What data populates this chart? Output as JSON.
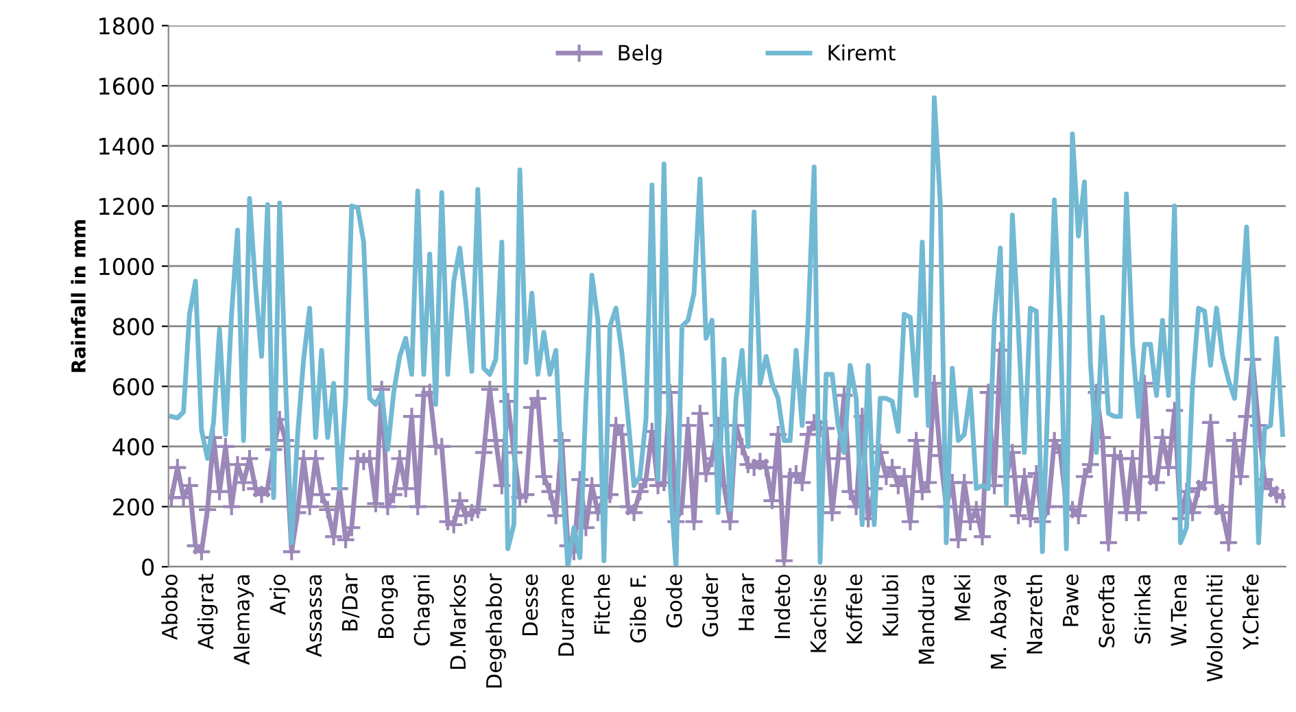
{
  "chart_data": {
    "type": "line",
    "ylabel": "Rainfall in mm",
    "categories": [
      "Abobo",
      null,
      null,
      null,
      null,
      null,
      "Adigrat",
      null,
      null,
      null,
      null,
      null,
      "Alemaya",
      null,
      null,
      null,
      null,
      null,
      "Arjo",
      null,
      null,
      null,
      null,
      null,
      "Assassa",
      null,
      null,
      null,
      null,
      null,
      "B/Dar",
      null,
      null,
      null,
      null,
      null,
      "Bonga",
      null,
      null,
      null,
      null,
      null,
      "Chagni",
      null,
      null,
      null,
      null,
      null,
      "D.Markos",
      null,
      null,
      null,
      null,
      null,
      "Degehabor",
      null,
      null,
      null,
      null,
      null,
      "Desse",
      null,
      null,
      null,
      null,
      null,
      "Durame",
      null,
      null,
      null,
      null,
      null,
      "Fitche",
      null,
      null,
      null,
      null,
      null,
      "Gibe F.",
      null,
      null,
      null,
      null,
      null,
      "Gode",
      null,
      null,
      null,
      null,
      null,
      "Guder",
      null,
      null,
      null,
      null,
      null,
      "Harar",
      null,
      null,
      null,
      null,
      null,
      "Indeto",
      null,
      null,
      null,
      null,
      null,
      "Kachise",
      null,
      null,
      null,
      null,
      null,
      "Koffele",
      null,
      null,
      null,
      null,
      null,
      "Kulubi",
      null,
      null,
      null,
      null,
      null,
      "Mandura",
      null,
      null,
      null,
      null,
      null,
      "Meki",
      null,
      null,
      null,
      null,
      null,
      "M. Abaya",
      null,
      null,
      null,
      null,
      null,
      "Nazreth",
      null,
      null,
      null,
      null,
      null,
      "Pawe",
      null,
      null,
      null,
      null,
      null,
      "Serofta",
      null,
      null,
      null,
      null,
      null,
      "Sirinka",
      null,
      null,
      null,
      null,
      null,
      "W.Tena",
      null,
      null,
      null,
      null,
      null,
      "Wolonchiti",
      null,
      null,
      null,
      null,
      null,
      "Y.Chefe",
      null,
      null,
      null,
      null,
      null
    ],
    "series": [
      {
        "name": "Belg",
        "color": "#9b87b8",
        "marker": "cross",
        "values": [
          230,
          330,
          230,
          270,
          70,
          50,
          190,
          430,
          250,
          400,
          200,
          340,
          280,
          360,
          260,
          240,
          260,
          390,
          490,
          420,
          50,
          180,
          360,
          200,
          360,
          240,
          190,
          100,
          260,
          90,
          130,
          360,
          350,
          360,
          210,
          590,
          200,
          240,
          360,
          260,
          500,
          200,
          570,
          580,
          400,
          400,
          150,
          140,
          220,
          170,
          180,
          190,
          380,
          590,
          420,
          270,
          550,
          380,
          230,
          240,
          530,
          560,
          300,
          250,
          170,
          420,
          70,
          50,
          290,
          130,
          270,
          180,
          230,
          240,
          470,
          440,
          200,
          180,
          250,
          290,
          450,
          270,
          280,
          580,
          150,
          200,
          470,
          150,
          510,
          310,
          360,
          470,
          270,
          150,
          470,
          400,
          340,
          330,
          350,
          330,
          220,
          440,
          20,
          300,
          310,
          280,
          440,
          480,
          460,
          460,
          180,
          360,
          570,
          250,
          200,
          500,
          160,
          260,
          380,
          300,
          330,
          270,
          300,
          150,
          420,
          250,
          280,
          610,
          370,
          200,
          280,
          90,
          280,
          150,
          190,
          100,
          580,
          270,
          720,
          300,
          380,
          170,
          300,
          160,
          310,
          150,
          200,
          420,
          380,
          200,
          190,
          170,
          300,
          340,
          580,
          430,
          80,
          370,
          360,
          180,
          360,
          180,
          610,
          300,
          280,
          430,
          330,
          520,
          160,
          250,
          180,
          260,
          280,
          480,
          200,
          180,
          80,
          420,
          300,
          500,
          690,
          470,
          290,
          260,
          240,
          230
        ]
      },
      {
        "name": "Kiremt",
        "color": "#72b9d3",
        "marker": "none",
        "values": [
          500,
          495,
          515,
          840,
          950,
          455,
          360,
          480,
          790,
          440,
          840,
          1120,
          420,
          1225,
          930,
          700,
          1205,
          230,
          1210,
          610,
          80,
          440,
          690,
          860,
          430,
          720,
          430,
          610,
          260,
          560,
          1200,
          1195,
          1080,
          560,
          540,
          580,
          390,
          580,
          700,
          760,
          640,
          1250,
          640,
          1040,
          540,
          1245,
          640,
          950,
          1060,
          880,
          650,
          1255,
          660,
          640,
          690,
          1080,
          60,
          140,
          1320,
          680,
          910,
          640,
          780,
          640,
          720,
          300,
          0,
          130,
          30,
          550,
          970,
          820,
          20,
          800,
          860,
          710,
          500,
          270,
          300,
          490,
          1270,
          290,
          1340,
          280,
          0,
          800,
          820,
          910,
          1290,
          760,
          820,
          180,
          690,
          190,
          560,
          720,
          400,
          1180,
          610,
          700,
          610,
          560,
          420,
          420,
          720,
          470,
          820,
          1330,
          15,
          640,
          640,
          470,
          380,
          670,
          560,
          140,
          670,
          140,
          560,
          560,
          550,
          450,
          840,
          830,
          570,
          1080,
          470,
          1560,
          1210,
          80,
          660,
          420,
          440,
          590,
          260,
          270,
          260,
          820,
          1060,
          210,
          1170,
          790,
          380,
          860,
          850,
          50,
          600,
          1220,
          790,
          60,
          1440,
          1100,
          1280,
          680,
          380,
          830,
          510,
          500,
          500,
          1240,
          740,
          500,
          740,
          740,
          570,
          820,
          570,
          1200,
          80,
          130,
          600,
          860,
          850,
          670,
          860,
          700,
          620,
          560,
          820,
          1130,
          680,
          80,
          460,
          470,
          760,
          440
        ]
      }
    ],
    "ylim": [
      0,
      1800
    ],
    "yticks": [
      0,
      200,
      400,
      600,
      800,
      1000,
      1200,
      1400,
      1600,
      1800
    ],
    "grid": "y",
    "legend": "top",
    "line_style": "solid"
  }
}
